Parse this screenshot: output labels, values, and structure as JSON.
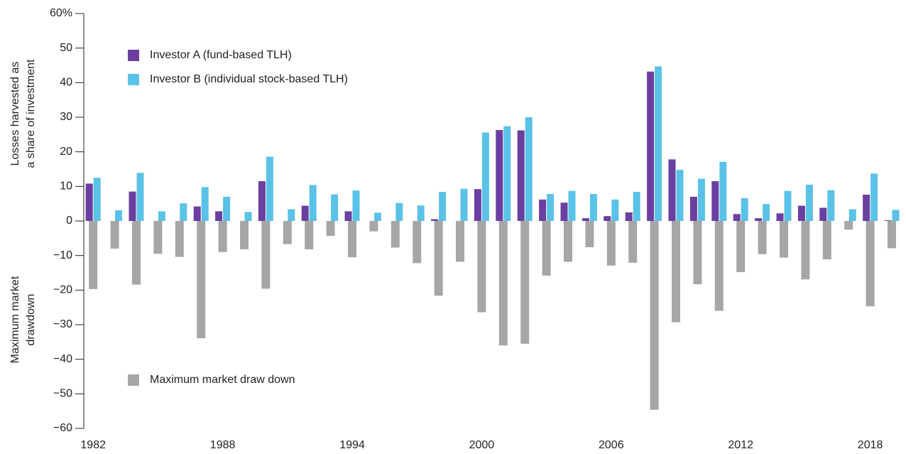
{
  "chart_data": {
    "type": "bar",
    "y_title_top": [
      "Losses harvested as",
      "a share of investment"
    ],
    "y_title_bottom": [
      "Maximum market",
      "drawdown"
    ],
    "categories": [
      "1982",
      null,
      null,
      null,
      null,
      null,
      "1988",
      null,
      null,
      null,
      null,
      null,
      "1994",
      null,
      null,
      null,
      null,
      null,
      "2000",
      null,
      null,
      null,
      null,
      null,
      "2006",
      null,
      null,
      null,
      null,
      null,
      "2012",
      null,
      null,
      null,
      null,
      null,
      "2018",
      null
    ],
    "series": [
      {
        "name": "Investor A (fund-based TLH)",
        "color": "#6b3fa0",
        "values": [
          10.8,
          0,
          8.5,
          0,
          0,
          4.2,
          2.8,
          0,
          11.5,
          0,
          4.4,
          0,
          2.8,
          0,
          0,
          0,
          0.5,
          0,
          9.2,
          26.3,
          26.2,
          6.2,
          5.3,
          0.8,
          1.4,
          2.5,
          43.2,
          17.8,
          7.0,
          11.5,
          2.0,
          0.8,
          2.2,
          4.4,
          3.8,
          0,
          7.6,
          0.2
        ]
      },
      {
        "name": "Investor B (individual stock-based TLH)",
        "color": "#5bc2e7",
        "values": [
          12.5,
          3.1,
          13.9,
          2.8,
          5.1,
          9.8,
          7.0,
          2.6,
          18.6,
          3.4,
          10.4,
          7.7,
          8.8,
          2.4,
          5.2,
          4.5,
          8.4,
          9.3,
          25.6,
          27.4,
          30.0,
          7.8,
          8.7,
          7.8,
          6.2,
          8.4,
          44.7,
          14.8,
          12.2,
          17.1,
          6.6,
          4.9,
          8.7,
          10.5,
          8.9,
          3.4,
          13.7,
          3.2
        ]
      },
      {
        "name": "Maximum market draw down",
        "color": "#a6a6a6",
        "values": [
          -19.7,
          -8.0,
          -18.4,
          -9.5,
          -10.4,
          -33.9,
          -9.0,
          -8.2,
          -19.6,
          -6.7,
          -8.2,
          -4.3,
          -10.5,
          -3.0,
          -7.7,
          -12.2,
          -21.6,
          -11.8,
          -26.4,
          -36.0,
          -35.5,
          -15.8,
          -11.8,
          -7.6,
          -12.9,
          -12.1,
          -54.6,
          -29.3,
          -18.3,
          -26.0,
          -14.8,
          -9.6,
          -10.6,
          -16.9,
          -11.1,
          -2.5,
          -24.7,
          -7.9
        ]
      }
    ],
    "ylim": [
      -60,
      60
    ],
    "yticks": [
      {
        "value": -60,
        "label": "−60"
      },
      {
        "value": -50,
        "label": "−50"
      },
      {
        "value": -40,
        "label": "−40"
      },
      {
        "value": -30,
        "label": "−30"
      },
      {
        "value": -20,
        "label": "−20"
      },
      {
        "value": -10,
        "label": "−10"
      },
      0,
      10,
      20,
      30,
      40,
      50,
      {
        "value": 60,
        "label": "60%"
      }
    ],
    "grid": false,
    "legend": "upper left"
  }
}
